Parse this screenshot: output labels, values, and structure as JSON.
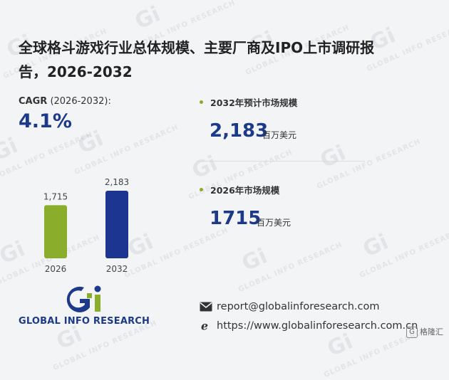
{
  "report": {
    "title_line1": "全球格斗游戏行业总体规模、主要厂商及IPO上市调研报",
    "title_line2": "告，2026-2032"
  },
  "cagr": {
    "label": "CAGR",
    "period": "(2026-2032):",
    "value": "4.1%"
  },
  "stats": [
    {
      "label": "2032年预计市场规模",
      "value": "2,183",
      "unit": "百万美元"
    },
    {
      "label": "2026年市场规模",
      "value": "1715",
      "unit": "百万美元"
    }
  ],
  "chart_data": {
    "type": "bar",
    "categories": [
      "2026",
      "2032"
    ],
    "values": [
      1715,
      2183
    ],
    "value_labels": [
      "1,715",
      "2,183"
    ],
    "colors": [
      "#8aad2c",
      "#1b3590"
    ],
    "ylim": [
      0,
      2183
    ],
    "title": "",
    "xlabel": "",
    "ylabel": ""
  },
  "footer": {
    "brand": "GLOBAL INFO RESEARCH",
    "email": "report@globalinforesearch.com",
    "website": "https://www.globalinforesearch.com.cn",
    "badge": "格隆汇"
  },
  "watermark": {
    "mark": "Gi",
    "text": "GLOBAL INFO RESEARCH"
  },
  "colors": {
    "accent_blue": "#1d3a8a",
    "accent_green": "#8aad2c",
    "background": "#f3f4f6"
  }
}
